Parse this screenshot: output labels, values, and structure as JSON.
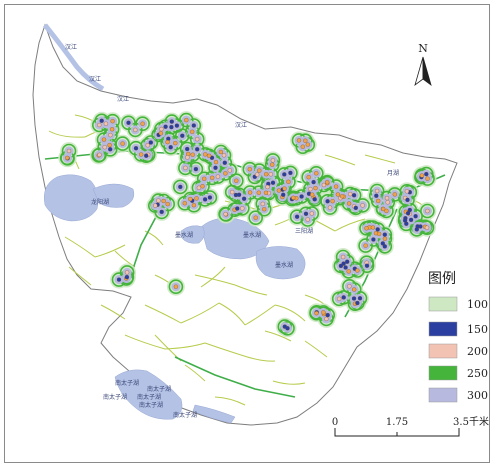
{
  "legend": {
    "title": "图例",
    "items": [
      {
        "label": "100",
        "color": "#cde8c2"
      },
      {
        "label": "150",
        "color": "#2b3fa0"
      },
      {
        "label": "200",
        "color": "#f2c2b2"
      },
      {
        "label": "250",
        "color": "#44b53a"
      },
      {
        "label": "300",
        "color": "#b7b9de"
      }
    ]
  },
  "north_arrow": {
    "letter": "N"
  },
  "scale_bar": {
    "ticks": [
      "0",
      "1.75",
      "3.5千米"
    ]
  },
  "place_labels": {
    "hanjiang_1": "汉江",
    "hanjiang_2": "汉江",
    "hanjiang_3": "汉江",
    "hanjiang_4": "汉江",
    "yuehu": "月湖",
    "longyang_lake": "龙阳湖",
    "moshui_lake_1": "墨水湖",
    "moshui_lake_2": "墨水湖",
    "moshui_lake_3": "墨水湖",
    "sanyang": "三阳湖",
    "nantaizi_1": "南太子湖",
    "nantaizi_2": "南太子湖",
    "nantaizi_3": "南太子湖",
    "nantaizi_4": "南太子湖",
    "nantaizi_5": "南太子湖",
    "nantaizi_6": "南太子湖"
  },
  "colors": {
    "boundary": "#7d7d7d",
    "water": "#b4c2e6",
    "road": "#b5cc4a",
    "trunk_road": "#3fae49",
    "buffer_outer": "#cde8c2",
    "buffer_ring": "#44b53a",
    "center_fill": "#b7b9de",
    "center_dot": "#2b3fa0",
    "point_orange": "#f0a24a",
    "point_pink": "#f2c2b2"
  }
}
